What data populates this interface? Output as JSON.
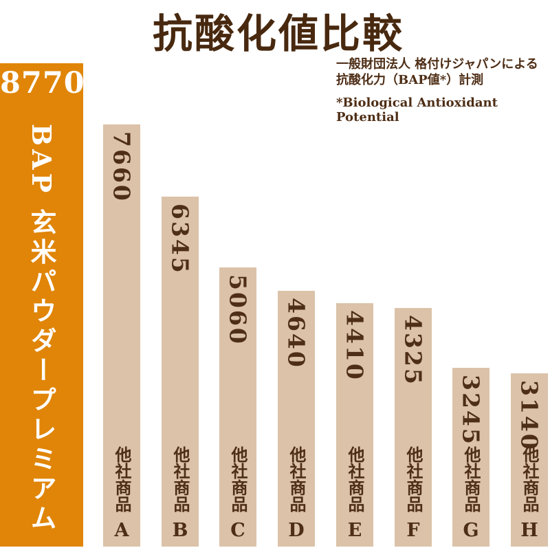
{
  "page": {
    "background": "#FFFFFF"
  },
  "colors": {
    "highlight_bar": "#E08508",
    "competitor_bar": "#DBC2A8",
    "text_brown": "#4E2E16",
    "title_brown": "#48290F",
    "highlight_text": "#FFFFFF"
  },
  "header": {
    "title": "抗酸化値比較",
    "subtitle_line1": "一般財団法人 格付けジャパンによる",
    "subtitle_line2": "抗酸化力（BAP値*）計測",
    "footnote": "*Biological Antioxidant Potential"
  },
  "chart_data": {
    "type": "bar",
    "title": "抗酸化値比較",
    "ylabel": "BAP値",
    "ylim": [
      0,
      8770
    ],
    "grid": false,
    "legend": false,
    "categories": [
      "BAP 玄米パウダープレミアム",
      "他社商品A",
      "他社商品B",
      "他社商品C",
      "他社商品D",
      "他社商品E",
      "他社商品F",
      "他社商品G",
      "他社商品H"
    ],
    "values": [
      8770,
      7660,
      6345,
      5060,
      4640,
      4410,
      4325,
      3245,
      3140
    ],
    "highlight_index": 0,
    "highlight": {
      "name": "BAP 玄米パウダープレミアム",
      "value": 8770,
      "value_label": "8770"
    },
    "competitors": [
      {
        "label": "他社商品",
        "letter": "A",
        "value": 7660,
        "value_label": "7660"
      },
      {
        "label": "他社商品",
        "letter": "B",
        "value": 6345,
        "value_label": "6345"
      },
      {
        "label": "他社商品",
        "letter": "C",
        "value": 5060,
        "value_label": "5060"
      },
      {
        "label": "他社商品",
        "letter": "D",
        "value": 4640,
        "value_label": "4640"
      },
      {
        "label": "他社商品",
        "letter": "E",
        "value": 4410,
        "value_label": "4410"
      },
      {
        "label": "他社商品",
        "letter": "F",
        "value": 4325,
        "value_label": "4325"
      },
      {
        "label": "他社商品",
        "letter": "G",
        "value": 3245,
        "value_label": "3245"
      },
      {
        "label": "他社商品",
        "letter": "H",
        "value": 3140,
        "value_label": "3140"
      }
    ]
  }
}
